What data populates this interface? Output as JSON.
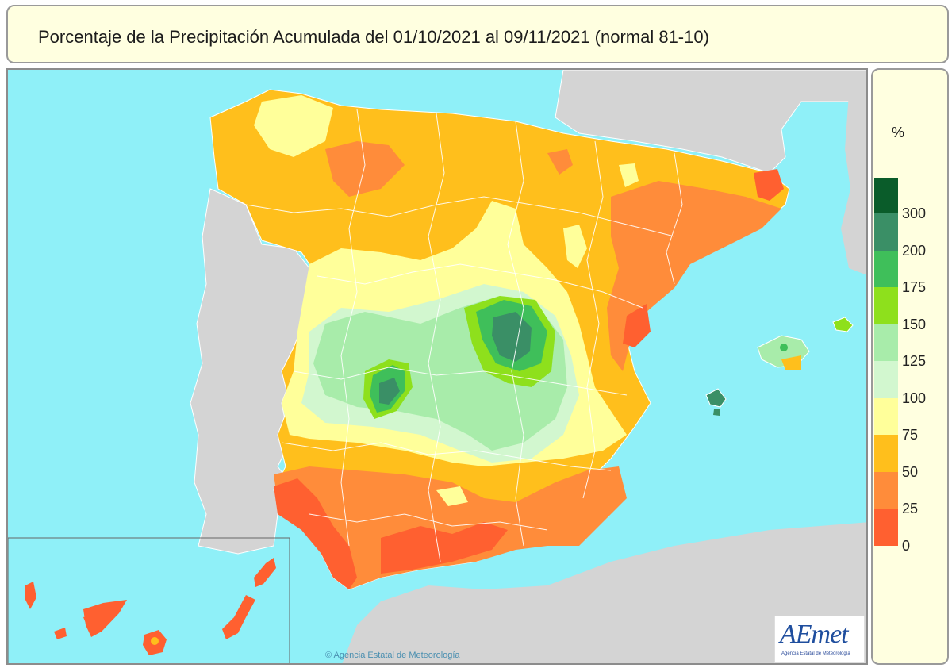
{
  "title": "Porcentaje de la Precipitación Acumulada del 01/10/2021 al 09/11/2021 (normal 81-10)",
  "legend": {
    "unit": "%",
    "labels": [
      "300",
      "200",
      "175",
      "150",
      "125",
      "100",
      "75",
      "50",
      "25",
      "0"
    ],
    "colors": [
      "#0a5c2a",
      "#3a8f66",
      "#3fbf5a",
      "#8ee01c",
      "#a8ecaa",
      "#d2f7cf",
      "#ffff9a",
      "#ffbf1c",
      "#ff8c3a",
      "#ff6030"
    ]
  },
  "logo": {
    "name": "AEmet",
    "subtitle": "Agencia Estatal de Meteorología"
  },
  "copyright": "© Agencia Estatal de Meteorología",
  "colors": {
    "sea": "#8ff0f8",
    "land_outside": "#d4d4d4",
    "panel_background": "#ffffe0"
  }
}
